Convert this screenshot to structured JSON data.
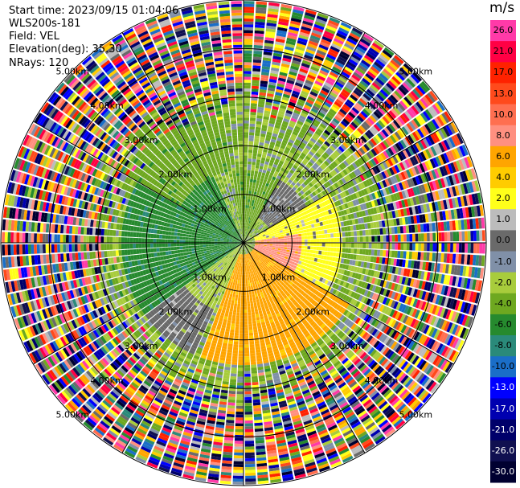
{
  "header": {
    "start_time": "Start time: 2023/09/15 01:04:06",
    "instrument": "WLS200s-181",
    "field": "Field: VEL",
    "elevation": "Elevation(deg): 35.30",
    "nrays": "NRays: 120"
  },
  "colorbar": {
    "unit": "m/s",
    "bins": [
      {
        "label": "26.0",
        "color": "#ff3aa8"
      },
      {
        "label": "21.0",
        "color": "#ff0044"
      },
      {
        "label": "17.0",
        "color": "#ff2200"
      },
      {
        "label": "13.0",
        "color": "#ff4a1c"
      },
      {
        "label": "10.0",
        "color": "#ff6f50"
      },
      {
        "label": "8.0",
        "color": "#ff9080"
      },
      {
        "label": "6.0",
        "color": "#ffa500"
      },
      {
        "label": "4.0",
        "color": "#ffcc00"
      },
      {
        "label": "2.0",
        "color": "#ffff1a"
      },
      {
        "label": "1.0",
        "color": "#bcbcbc"
      },
      {
        "label": "0.0",
        "color": "#6a6a6a"
      },
      {
        "label": "-1.0",
        "color": "#8090a8"
      },
      {
        "label": "-2.0",
        "color": "#a8cc3c"
      },
      {
        "label": "-4.0",
        "color": "#6ea820"
      },
      {
        "label": "-6.0",
        "color": "#268a2e"
      },
      {
        "label": "-8.0",
        "color": "#2a8a7a"
      },
      {
        "label": "-10.0",
        "color": "#1a6ec8"
      },
      {
        "label": "-13.0",
        "color": "#0000ff"
      },
      {
        "label": "-17.0",
        "color": "#0000b0"
      },
      {
        "label": "-21.0",
        "color": "#00006a"
      },
      {
        "label": "-26.0",
        "color": "#101050"
      },
      {
        "label": "-30.0",
        "color": "#000030"
      }
    ]
  },
  "chart_data": {
    "type": "heatmap",
    "subtype": "radar-ppi",
    "field": "VEL",
    "unit": "m/s",
    "nrays": 120,
    "range_rings_km": [
      1.0,
      2.0,
      3.0,
      4.0,
      5.0
    ],
    "ring_labels": [
      "1.00km",
      "2.00km",
      "3.00km",
      "4.00km",
      "5.00km"
    ],
    "max_range_km": 5.0,
    "radial_lines_deg": [
      0,
      30,
      60,
      90,
      120,
      150,
      180,
      210,
      240,
      270,
      300,
      330
    ],
    "data_sectors": [
      {
        "az_from": 235,
        "az_to": 335,
        "range_km": [
          0.0,
          2.5
        ],
        "velocity": -6.0
      },
      {
        "az_from": 300,
        "az_to": 350,
        "range_km": [
          1.5,
          3.5
        ],
        "velocity": -4.0
      },
      {
        "az_from": 350,
        "az_to": 30,
        "range_km": [
          0.0,
          1.5
        ],
        "velocity": -4.0
      },
      {
        "az_from": 30,
        "az_to": 60,
        "range_km": [
          0.6,
          1.5
        ],
        "velocity": 0.0
      },
      {
        "az_from": 60,
        "az_to": 120,
        "range_km": [
          0.2,
          2.0
        ],
        "velocity": 2.0
      },
      {
        "az_from": 80,
        "az_to": 130,
        "range_km": [
          0.2,
          1.2
        ],
        "velocity": 8.0
      },
      {
        "az_from": 120,
        "az_to": 200,
        "range_km": [
          0.2,
          2.5
        ],
        "velocity": 6.0
      },
      {
        "az_from": 200,
        "az_to": 235,
        "range_km": [
          0.0,
          1.5
        ],
        "velocity": -2.0
      },
      {
        "az_from": 205,
        "az_to": 235,
        "range_km": [
          1.5,
          2.5
        ],
        "velocity": 0.0
      }
    ],
    "outer_noise_range_km": [
      3.0,
      5.0
    ],
    "grid": true
  }
}
